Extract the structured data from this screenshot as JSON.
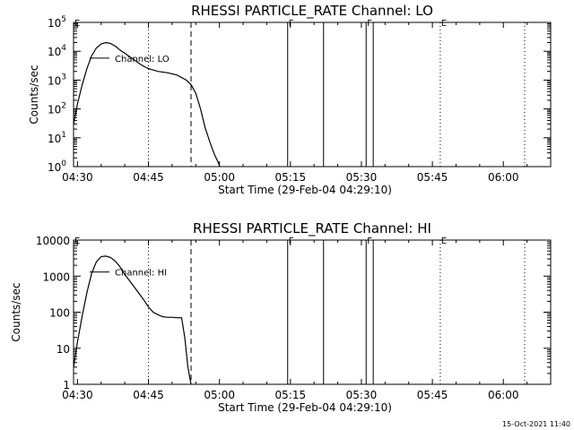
{
  "colors": {
    "background": "#ffffff",
    "foreground": "#000000"
  },
  "footer": "15-Oct-2021 11:40",
  "chart_data": [
    {
      "type": "line",
      "title": "RHESSI PARTICLE_RATE Channel: LO",
      "xlabel": "Start Time (29-Feb-04 04:29:10)",
      "ylabel": "Counts/sec",
      "yscale": "log",
      "ylim": [
        1,
        100000
      ],
      "xlim": [
        "04:29:10",
        "06:10:00"
      ],
      "x_ticks": [
        "04:30",
        "04:45",
        "05:00",
        "05:15",
        "05:30",
        "05:45",
        "06:00"
      ],
      "y_ticks": [
        {
          "value": 1,
          "base": "10",
          "exp": "0"
        },
        {
          "value": 10,
          "base": "10",
          "exp": "1"
        },
        {
          "value": 100,
          "base": "10",
          "exp": "2"
        },
        {
          "value": 1000,
          "base": "10",
          "exp": "3"
        },
        {
          "value": 10000,
          "base": "10",
          "exp": "4"
        },
        {
          "value": 100000,
          "base": "10",
          "exp": "5"
        }
      ],
      "series": [
        {
          "name": "Channel: LO",
          "x": [
            "04:29:10",
            "04:30:00",
            "04:31:00",
            "04:32:00",
            "04:33:00",
            "04:34:00",
            "04:35:00",
            "04:36:00",
            "04:37:00",
            "04:38:00",
            "04:39:00",
            "04:40:00",
            "04:41:00",
            "04:42:00",
            "04:43:00",
            "04:44:00",
            "04:45:00",
            "04:47:00",
            "04:49:00",
            "04:51:00",
            "04:53:00",
            "04:54:00",
            "04:55:00",
            "04:56:00",
            "04:57:00",
            "04:58:00",
            "04:59:00",
            "04:59:40",
            "05:00:05"
          ],
          "y": [
            30,
            150,
            700,
            2500,
            7000,
            13000,
            18000,
            20000,
            18500,
            15000,
            11000,
            8500,
            6500,
            5000,
            3800,
            3000,
            2500,
            2000,
            1800,
            1500,
            1000,
            700,
            350,
            100,
            22,
            7,
            2.5,
            1.5,
            1
          ]
        }
      ],
      "vlines": [
        {
          "x": "04:45:00",
          "style": "dotted"
        },
        {
          "x": "04:54:00",
          "style": "dashed"
        },
        {
          "x": "05:14:25",
          "style": "solid"
        },
        {
          "x": "05:22:00",
          "style": "solid"
        },
        {
          "x": "05:31:00",
          "style": "solid"
        },
        {
          "x": "05:32:30",
          "style": "solid"
        },
        {
          "x": "05:46:40",
          "style": "dotted"
        },
        {
          "x": "06:04:30",
          "style": "dotted"
        }
      ],
      "flags": [
        {
          "x": "04:29:10",
          "label": "E"
        },
        {
          "x": "05:14:25",
          "label": "F"
        },
        {
          "x": "05:31:00",
          "label": "F"
        },
        {
          "x": "05:46:40",
          "label": "E"
        }
      ]
    },
    {
      "type": "line",
      "title": "RHESSI PARTICLE_RATE Channel: HI",
      "xlabel": "Start Time (29-Feb-04 04:29:10)",
      "ylabel": "Counts/sec",
      "yscale": "log",
      "ylim": [
        1,
        10000
      ],
      "xlim": [
        "04:29:10",
        "06:10:00"
      ],
      "x_ticks": [
        "04:30",
        "04:45",
        "05:00",
        "05:15",
        "05:30",
        "05:45",
        "06:00"
      ],
      "y_ticks": [
        {
          "value": 1,
          "label": "1"
        },
        {
          "value": 10,
          "label": "10"
        },
        {
          "value": 100,
          "label": "100"
        },
        {
          "value": 1000,
          "label": "1000"
        },
        {
          "value": 10000,
          "label": "10000"
        }
      ],
      "series": [
        {
          "name": "Channel: HI",
          "x": [
            "04:29:10",
            "04:30:00",
            "04:31:00",
            "04:32:00",
            "04:33:00",
            "04:34:00",
            "04:35:00",
            "04:36:00",
            "04:37:00",
            "04:38:00",
            "04:39:00",
            "04:40:00",
            "04:41:00",
            "04:42:00",
            "04:43:00",
            "04:44:00",
            "04:45:00",
            "04:46:00",
            "04:47:00",
            "04:48:00",
            "04:49:00",
            "04:50:00",
            "04:51:00",
            "04:52:00",
            "04:52:40",
            "04:53:20",
            "04:54:00"
          ],
          "y": [
            3,
            15,
            80,
            350,
            1200,
            2500,
            3500,
            3600,
            3300,
            2600,
            1800,
            1100,
            750,
            500,
            330,
            220,
            140,
            100,
            85,
            75,
            72,
            72,
            70,
            70,
            20,
            3,
            1
          ]
        }
      ],
      "vlines": [
        {
          "x": "04:45:00",
          "style": "dotted"
        },
        {
          "x": "04:54:00",
          "style": "dashed"
        },
        {
          "x": "05:14:25",
          "style": "solid"
        },
        {
          "x": "05:22:00",
          "style": "solid"
        },
        {
          "x": "05:31:00",
          "style": "solid"
        },
        {
          "x": "05:32:30",
          "style": "solid"
        },
        {
          "x": "05:46:40",
          "style": "dotted"
        },
        {
          "x": "06:04:30",
          "style": "dotted"
        }
      ],
      "flags": [
        {
          "x": "04:29:10",
          "label": "E"
        },
        {
          "x": "05:14:25",
          "label": "F"
        },
        {
          "x": "05:31:00",
          "label": "F"
        },
        {
          "x": "05:46:40",
          "label": "E"
        }
      ]
    }
  ]
}
